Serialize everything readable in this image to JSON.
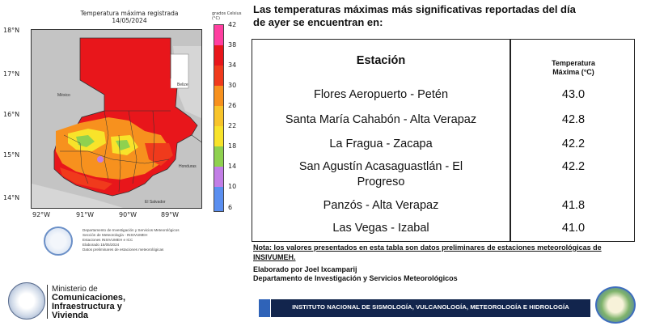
{
  "map": {
    "title_line1": "Temperatura máxima registrada",
    "title_line2": "14/05/2024",
    "lat_labels": [
      "18°N",
      "17°N",
      "16°N",
      "15°N",
      "14°N"
    ],
    "lon_labels": [
      "92°W",
      "91°W",
      "90°W",
      "89°W"
    ],
    "region_labels": [
      "México",
      "Belize",
      "Honduras",
      "El Salvador"
    ],
    "colorbar_title": "grados Celsius (°C)",
    "colorbar_ticks": [
      "42",
      "38",
      "34",
      "30",
      "26",
      "22",
      "18",
      "14",
      "10",
      "6"
    ],
    "colors": {
      "deep_red": "#e8161b",
      "red": "#f03a1c",
      "orange": "#f7911e",
      "yellow": "#f8e32a",
      "green": "#8fd14f",
      "purple": "#c27ee6",
      "blue": "#5b8ff0",
      "map_bg": "#bdbdbd"
    },
    "credits": [
      "Departamento de Investigación y Servicios Meteorológicos",
      "Sección de Meteorología - INSIVUMEH",
      "Estaciones INSIVUMEH e ICC",
      "Elaborado 15/05/2024",
      "Datos preliminares de estaciones meteorológicas"
    ]
  },
  "headline_line1": "Las temperaturas máximas más significativas reportadas del día",
  "headline_line2": "de ayer se encuentran en:",
  "table": {
    "header_station": "Estación",
    "header_temp_line1": "Temperatura",
    "header_temp_line2": "Máxima (°C)",
    "rows": [
      {
        "station_line1": "Flores Aeropuerto - Petén",
        "station_line2": "",
        "temp": "43.0"
      },
      {
        "station_line1": "Santa María Cahabón - Alta Verapaz",
        "station_line2": "",
        "temp": "42.8"
      },
      {
        "station_line1": "La Fragua - Zacapa",
        "station_line2": "",
        "temp": "42.2"
      },
      {
        "station_line1": "San Agustín Acasaguastlán - El",
        "station_line2": "Progreso",
        "temp": "42.2"
      },
      {
        "station_line1": "Panzós - Alta Verapaz",
        "station_line2": "",
        "temp": "41.8"
      },
      {
        "station_line1": "Las Vegas - Izabal",
        "station_line2": "",
        "temp": "41.0"
      }
    ]
  },
  "note_label": "Nota:",
  "note_text": " los valores presentados en esta tabla son datos preliminares de estaciones meteorológicas de INSIVUMEH.",
  "elaborated_by": "Elaborado por Joel Ixcamparij",
  "department": "Departamento de Investigación y Servicios Meteorológicos",
  "footer": {
    "ministry_line1": "Ministerio de",
    "ministry_line2": "Comunicaciones,",
    "ministry_line3": "Infraestructura y",
    "ministry_line4": "Vivienda",
    "seal_text": "GOBIERNO DE LA REPÚBLICA GUATEMALA",
    "bar_text": "INSTITUTO NACIONAL DE SISMOLOGÍA, VULCANOLOGÍA, METEOROLOGÍA E HIDROLOGÍA",
    "logo_text": "INSIVUMEH"
  }
}
